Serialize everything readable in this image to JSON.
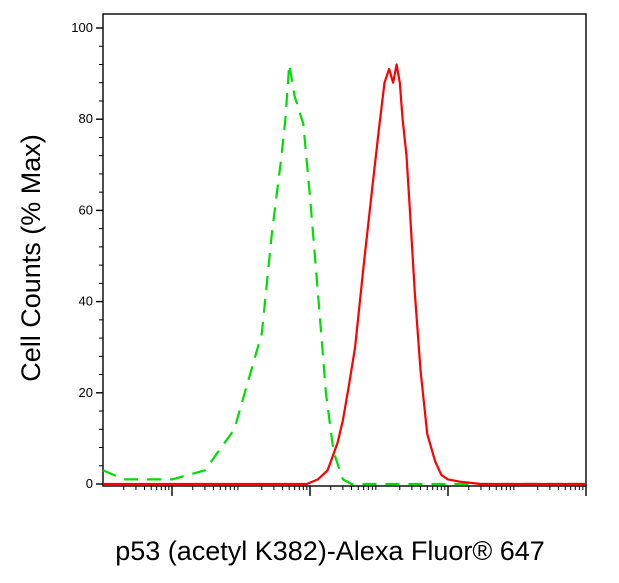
{
  "chart_data": {
    "type": "line",
    "title": "",
    "xlabel": "p53 (acetyl K382)-Alexa Fluor® 647",
    "ylabel": "Cell Counts (% Max)",
    "xscale": "log",
    "xlim": [
      1,
      10000000
    ],
    "ylim": [
      0,
      100
    ],
    "yticks": [
      "0",
      "20",
      "40",
      "60",
      "80",
      "100"
    ],
    "grid": false,
    "legend": "none",
    "series": [
      {
        "color": "#00dd00",
        "line_style": "dashed",
        "x": [
          1,
          2,
          10,
          30,
          80,
          200,
          280,
          380,
          440,
          500,
          600,
          800,
          1000,
          1300,
          1700,
          2200,
          3000,
          4000,
          5000,
          7000,
          10000,
          20000,
          100000,
          10000000
        ],
        "y": [
          3,
          1,
          1,
          3,
          12,
          33,
          55,
          71,
          80,
          92,
          85,
          79,
          63,
          42,
          20,
          7,
          1,
          0,
          0,
          0,
          0,
          0,
          0,
          0
        ]
      },
      {
        "color": "#ff0000",
        "line_style": "solid",
        "x": [
          1,
          500,
          900,
          1300,
          1800,
          2500,
          3000,
          3700,
          4500,
          6000,
          8000,
          10000,
          12000,
          14000,
          16000,
          18000,
          20000,
          22000,
          25000,
          28000,
          33000,
          40000,
          50000,
          65000,
          80000,
          100000,
          150000,
          300000,
          1000000,
          10000000
        ],
        "y": [
          0,
          0,
          0,
          1,
          3,
          9,
          14,
          22,
          30,
          48,
          65,
          78,
          88,
          91,
          88,
          92,
          88,
          80,
          72,
          60,
          42,
          25,
          11,
          5,
          2,
          1,
          0.5,
          0,
          0,
          0
        ]
      }
    ]
  }
}
